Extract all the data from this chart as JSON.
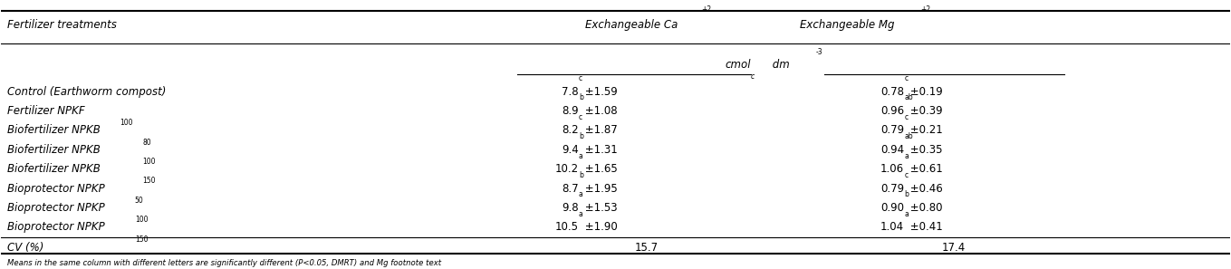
{
  "col_headers": [
    "Fertilizer treatments",
    "Exchangeable Ca+2",
    "Exchangeable Mg+2"
  ],
  "subheader": "cmolc dm-3",
  "rows": [
    [
      "Control (Earthworm compost)",
      "7.8c ±1.59",
      "0.78c ±0.19"
    ],
    [
      "Fertilizer NPKF100",
      "8.9b ±1.08",
      "0.96ab ±0.39"
    ],
    [
      "Biofertilizer NPKB80",
      "8.2c ±1.87",
      "0.79c ±0.21"
    ],
    [
      "Biofertilizer NPKB100",
      "9.4b ±1.31",
      "0.94ab ±0.35"
    ],
    [
      "Biofertilizer NPKB150",
      "10.2a ±1.65",
      "1.06a ±0.61"
    ],
    [
      "Bioprotector NPKP50",
      "8.7b ±1.95",
      "0.79c ±0.46"
    ],
    [
      "Bioprotector NPKP100",
      "9.8a ±1.53",
      "0.90b ±0.80"
    ],
    [
      "Bioprotector NPKP150",
      "10.5a ±1.90",
      "1.04a ±0.41"
    ]
  ],
  "cv_row": [
    "CV (%)",
    "15.7",
    "17.4"
  ],
  "footnote": "Means in the same column with different letters are significantly different (P<0.05, DMRT) and Mg footnote text",
  "bg_color": "#ffffff",
  "text_color": "#000000",
  "fontsize": 8.5
}
